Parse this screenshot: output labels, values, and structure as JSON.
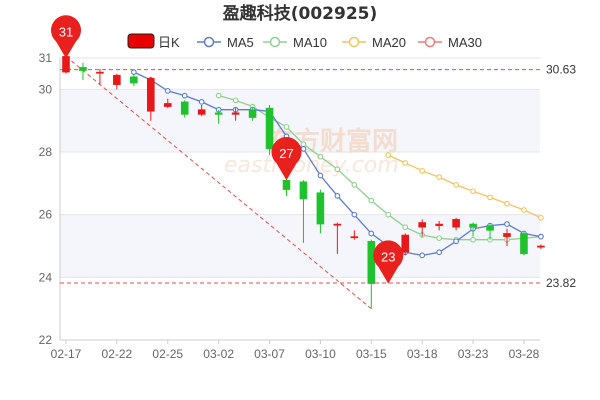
{
  "chart_data": {
    "type": "candlestick",
    "title": "盈趣科技(002925)",
    "legend": [
      {
        "name": "日K",
        "color": "#e60000"
      },
      {
        "name": "MA5",
        "color": "#5b7bd5"
      },
      {
        "name": "MA10",
        "color": "#8fd18f"
      },
      {
        "name": "MA20",
        "color": "#f2c45c"
      },
      {
        "name": "MA30",
        "color": "#f07b7b"
      }
    ],
    "watermark": [
      "东方财富网",
      "eastmoney.com"
    ],
    "y_axis": {
      "min": 22,
      "max": 31,
      "ticks": [
        22,
        24,
        26,
        28,
        30,
        31
      ]
    },
    "x_tick_labels": [
      "02-17",
      "02-22",
      "02-25",
      "03-02",
      "03-07",
      "03-10",
      "03-15",
      "03-18",
      "03-23",
      "03-28"
    ],
    "x_tick_index": [
      0,
      3,
      6,
      9,
      12,
      15,
      18,
      21,
      24,
      27
    ],
    "candles": [
      {
        "open": 30.55,
        "close": 31.05,
        "high": 31.3,
        "low": 30.5
      },
      {
        "open": 30.7,
        "close": 30.6,
        "high": 30.85,
        "low": 30.3
      },
      {
        "open": 30.55,
        "close": 30.55,
        "high": 30.65,
        "low": 30.15
      },
      {
        "open": 30.15,
        "close": 30.45,
        "high": 30.5,
        "low": 30.0
      },
      {
        "open": 30.4,
        "close": 30.2,
        "high": 30.5,
        "low": 30.1
      },
      {
        "open": 29.3,
        "close": 30.35,
        "high": 30.4,
        "low": 29.0
      },
      {
        "open": 29.45,
        "close": 29.55,
        "high": 29.7,
        "low": 29.4
      },
      {
        "open": 29.6,
        "close": 29.2,
        "high": 29.65,
        "low": 29.1
      },
      {
        "open": 29.2,
        "close": 29.35,
        "high": 29.5,
        "low": 29.15
      },
      {
        "open": 29.25,
        "close": 29.2,
        "high": 29.35,
        "low": 28.9
      },
      {
        "open": 29.2,
        "close": 29.25,
        "high": 29.4,
        "low": 29.0
      },
      {
        "open": 29.35,
        "close": 29.1,
        "high": 29.45,
        "low": 29.0
      },
      {
        "open": 29.4,
        "close": 28.1,
        "high": 29.5,
        "low": 27.9
      },
      {
        "open": 27.1,
        "close": 26.8,
        "high": 27.4,
        "low": 26.6
      },
      {
        "open": 27.05,
        "close": 26.5,
        "high": 27.1,
        "low": 25.1
      },
      {
        "open": 26.7,
        "close": 25.7,
        "high": 26.8,
        "low": 25.4
      },
      {
        "open": 25.7,
        "close": 25.7,
        "high": 25.75,
        "low": 24.75
      },
      {
        "open": 25.3,
        "close": 25.3,
        "high": 25.5,
        "low": 25.2
      },
      {
        "open": 25.15,
        "close": 23.8,
        "high": 25.2,
        "low": 23.0
      },
      {
        "open": 24.55,
        "close": 24.85,
        "high": 24.95,
        "low": 24.5
      },
      {
        "open": 24.8,
        "close": 25.35,
        "high": 25.4,
        "low": 24.7
      },
      {
        "open": 25.6,
        "close": 25.75,
        "high": 25.85,
        "low": 25.3
      },
      {
        "open": 25.65,
        "close": 25.7,
        "high": 25.8,
        "low": 25.5
      },
      {
        "open": 25.6,
        "close": 25.85,
        "high": 25.9,
        "low": 25.5
      },
      {
        "open": 25.7,
        "close": 25.6,
        "high": 25.75,
        "low": 25.3
      },
      {
        "open": 25.65,
        "close": 25.5,
        "high": 25.7,
        "low": 25.2
      },
      {
        "open": 25.3,
        "close": 25.4,
        "high": 25.55,
        "low": 25.0
      },
      {
        "open": 25.4,
        "close": 24.75,
        "high": 25.45,
        "low": 24.7
      },
      {
        "open": 25.0,
        "close": 25.0,
        "high": 25.05,
        "low": 24.9
      }
    ],
    "ma5": [
      null,
      null,
      null,
      null,
      30.55,
      30.3,
      29.95,
      29.8,
      29.6,
      29.35,
      29.35,
      29.35,
      29.3,
      28.5,
      28.1,
      27.25,
      26.6,
      26.0,
      25.4,
      25.0,
      24.8,
      24.7,
      24.8,
      25.15,
      25.55,
      25.65,
      25.7,
      25.4,
      25.3
    ],
    "ma10": [
      null,
      null,
      null,
      null,
      null,
      null,
      null,
      null,
      null,
      29.8,
      29.65,
      29.45,
      29.1,
      28.8,
      28.25,
      27.85,
      27.45,
      26.95,
      26.45,
      26.0,
      25.6,
      25.35,
      25.25,
      25.2,
      25.2,
      25.2,
      25.2,
      25.25,
      25.3
    ],
    "ma20": [
      null,
      null,
      null,
      null,
      null,
      null,
      null,
      null,
      null,
      null,
      null,
      null,
      null,
      null,
      null,
      null,
      null,
      null,
      null,
      27.9,
      27.65,
      27.4,
      27.2,
      26.95,
      26.75,
      26.55,
      26.35,
      26.15,
      25.9
    ],
    "ma30": [],
    "reference_lines": [
      {
        "value": 30.63,
        "label": "30.63"
      },
      {
        "value": 23.82,
        "label": "23.82"
      }
    ],
    "markers": [
      {
        "index": 0,
        "value": 31.05,
        "label": "31"
      },
      {
        "index": 13,
        "value": 27.1,
        "label": "27"
      },
      {
        "index": 19,
        "value": 23.8,
        "label": "23"
      }
    ],
    "trend_line": {
      "from_index": 0,
      "from_value": 31.05,
      "to_index": 18,
      "to_value": 23.0
    }
  }
}
